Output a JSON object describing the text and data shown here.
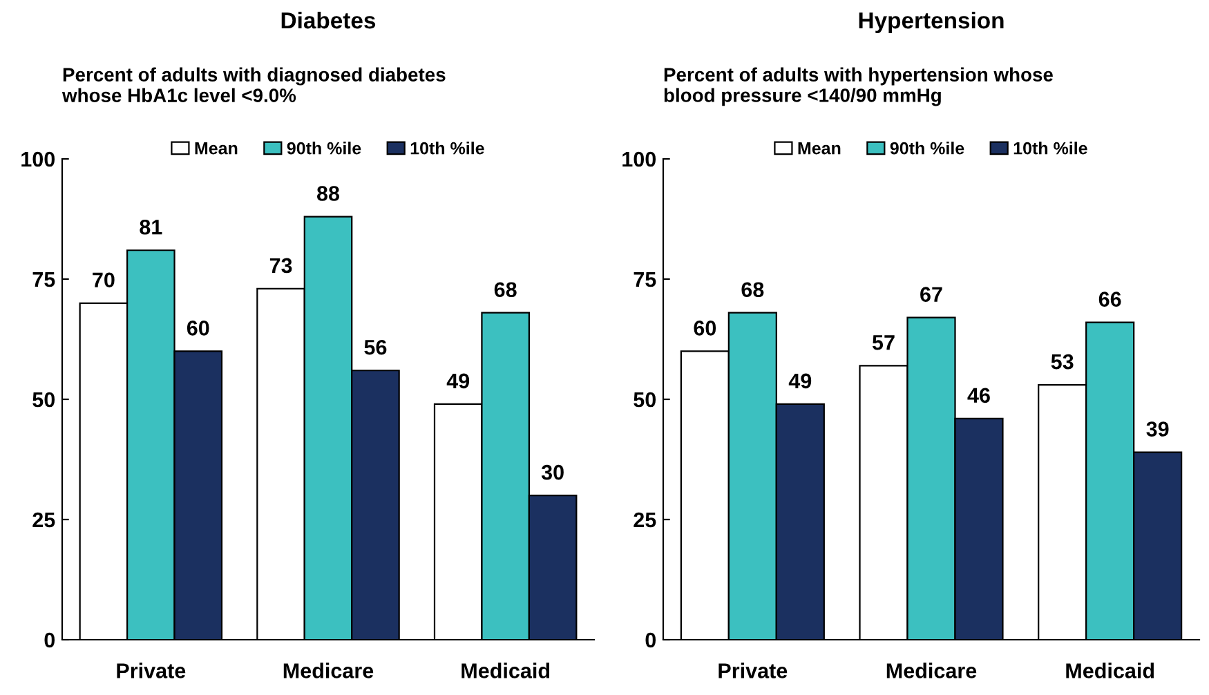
{
  "chart_data": [
    {
      "type": "bar",
      "title": "Diabetes",
      "subtitle": "Percent of adults with diagnosed diabetes\nwhose HbA1c level <9.0%",
      "categories": [
        "Private",
        "Medicare",
        "Medicaid"
      ],
      "series": [
        {
          "name": "Mean",
          "color": "#ffffff",
          "values": [
            70,
            73,
            49
          ]
        },
        {
          "name": "90th %ile",
          "color": "#3cc0c0",
          "values": [
            81,
            88,
            68
          ]
        },
        {
          "name": "10th %ile",
          "color": "#1b3060",
          "values": [
            60,
            56,
            30
          ]
        }
      ],
      "ylim": [
        0,
        100
      ],
      "yticks": [
        0,
        25,
        50,
        75,
        100
      ],
      "grid": false,
      "legend": "top",
      "data_labels": true
    },
    {
      "type": "bar",
      "title": "Hypertension",
      "subtitle": "Percent of adults with hypertension whose\nblood pressure <140/90 mmHg",
      "categories": [
        "Private",
        "Medicare",
        "Medicaid"
      ],
      "series": [
        {
          "name": "Mean",
          "color": "#ffffff",
          "values": [
            60,
            57,
            53
          ]
        },
        {
          "name": "90th %ile",
          "color": "#3cc0c0",
          "values": [
            68,
            67,
            66
          ]
        },
        {
          "name": "10th %ile",
          "color": "#1b3060",
          "values": [
            49,
            46,
            39
          ]
        }
      ],
      "ylim": [
        0,
        100
      ],
      "yticks": [
        0,
        25,
        50,
        75,
        100
      ],
      "grid": false,
      "legend": "top",
      "data_labels": true
    }
  ]
}
